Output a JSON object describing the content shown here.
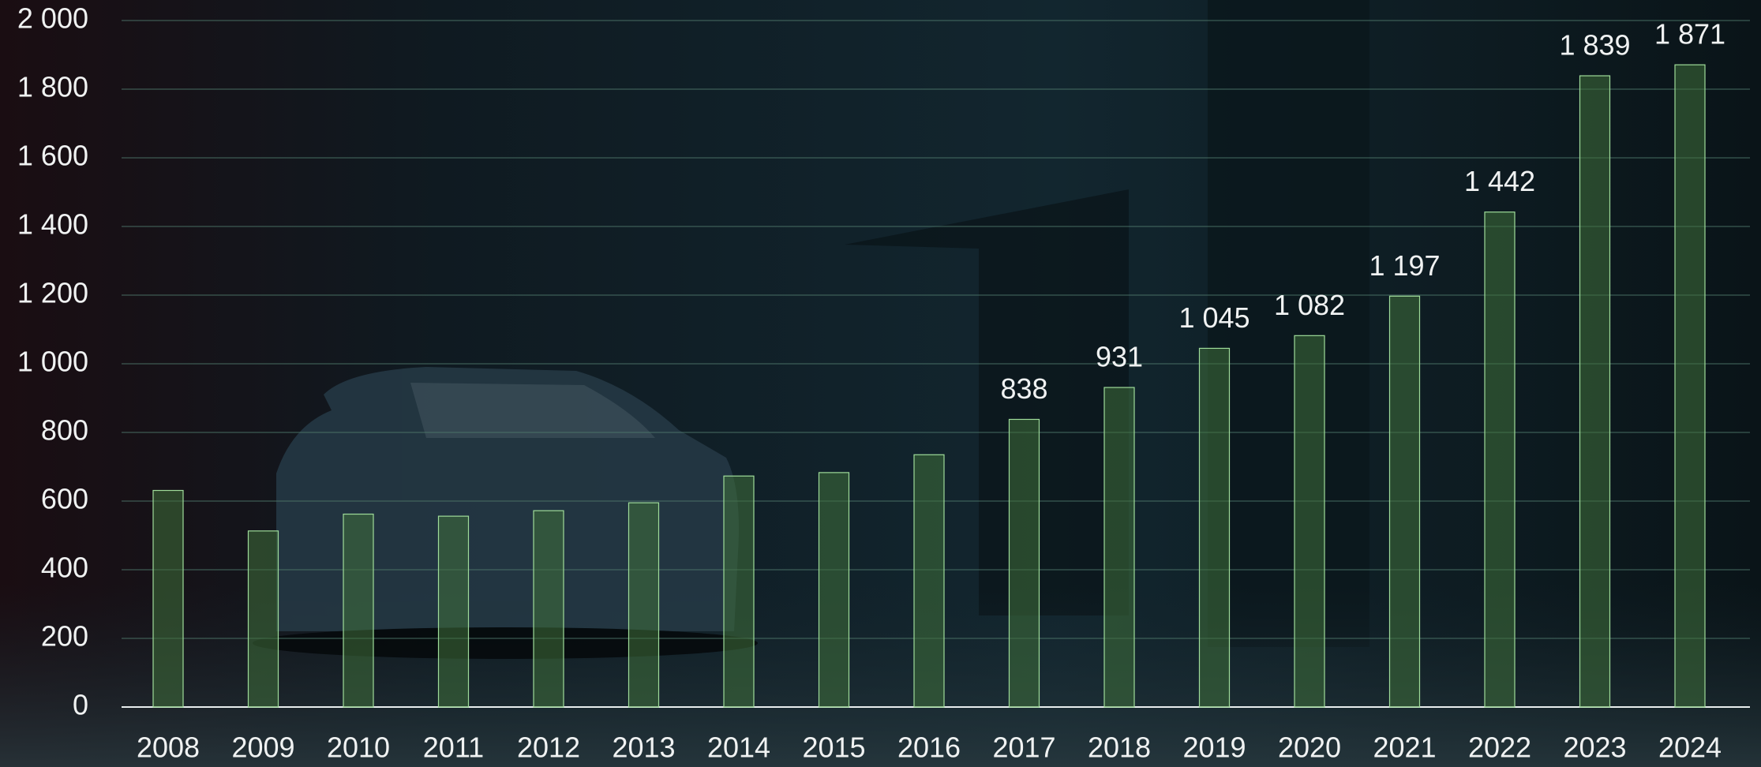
{
  "chart_data": {
    "type": "bar",
    "categories": [
      "2008",
      "2009",
      "2010",
      "2011",
      "2012",
      "2013",
      "2014",
      "2015",
      "2016",
      "2017",
      "2018",
      "2019",
      "2020",
      "2021",
      "2022",
      "2023",
      "2024"
    ],
    "values": [
      631,
      513,
      562,
      556,
      572,
      595,
      673,
      683,
      735,
      838,
      931,
      1045,
      1082,
      1197,
      1442,
      1839,
      1871
    ],
    "value_labels": [
      null,
      null,
      null,
      null,
      null,
      null,
      null,
      null,
      null,
      "838",
      "931",
      "1 045",
      "1 082",
      "1 197",
      "1 442",
      "1 839",
      "1 871"
    ],
    "color": "#3f6f3a",
    "ylim": [
      0,
      2000
    ],
    "yticks": [
      0,
      200,
      400,
      600,
      800,
      {
        "value": 1000,
        "label": "1 000"
      },
      {
        "value": 1200,
        "label": "1 200"
      },
      {
        "value": 1400,
        "label": "1 400"
      },
      {
        "value": 1600,
        "label": "1 600"
      },
      {
        "value": 1800,
        "label": "1 800"
      },
      {
        "value": 2000,
        "label": "2 000"
      }
    ],
    "grid": true
  }
}
